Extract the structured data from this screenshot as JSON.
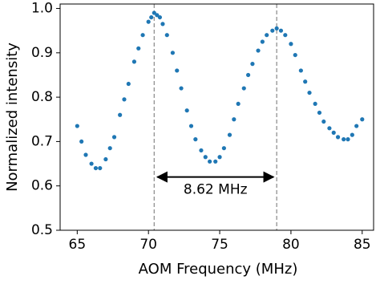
{
  "chart_data": {
    "type": "scatter",
    "xlabel": "AOM Frequency (MHz)",
    "ylabel": "Normalized intensity",
    "xlim": [
      63.8,
      85.8
    ],
    "ylim": [
      0.5,
      1.01
    ],
    "xticks": [
      65,
      70,
      75,
      80,
      85
    ],
    "yticks": [
      0.5,
      0.6,
      0.7,
      0.8,
      0.9,
      {
        "value": 1,
        "label": "1.0"
      }
    ],
    "color": "#1f77b4",
    "vlines": [
      70.4,
      79
    ],
    "annotation": "8.62 MHz",
    "x": [
      65,
      65.3,
      65.6,
      66,
      66.3,
      66.6,
      67,
      67.3,
      67.6,
      68,
      68.3,
      68.6,
      69,
      69.3,
      69.6,
      70,
      70.2,
      70.4,
      70.6,
      70.8,
      71,
      71.3,
      71.7,
      72,
      72.3,
      72.7,
      73,
      73.3,
      73.7,
      74,
      74.3,
      74.7,
      75,
      75.3,
      75.7,
      76,
      76.3,
      76.7,
      77,
      77.3,
      77.7,
      78,
      78.3,
      78.7,
      79,
      79.3,
      79.6,
      80,
      80.3,
      80.7,
      81,
      81.3,
      81.7,
      82,
      82.3,
      82.7,
      83,
      83.3,
      83.7,
      84,
      84.3,
      84.6,
      85
    ],
    "y": [
      0.735,
      0.7,
      0.67,
      0.65,
      0.64,
      0.64,
      0.66,
      0.685,
      0.71,
      0.76,
      0.795,
      0.83,
      0.88,
      0.91,
      0.94,
      0.97,
      0.98,
      0.99,
      0.985,
      0.98,
      0.965,
      0.94,
      0.9,
      0.86,
      0.82,
      0.77,
      0.735,
      0.705,
      0.68,
      0.665,
      0.655,
      0.655,
      0.665,
      0.685,
      0.715,
      0.75,
      0.785,
      0.82,
      0.85,
      0.875,
      0.905,
      0.925,
      0.94,
      0.95,
      0.955,
      0.95,
      0.94,
      0.92,
      0.895,
      0.86,
      0.835,
      0.81,
      0.785,
      0.765,
      0.745,
      0.73,
      0.72,
      0.71,
      0.705,
      0.705,
      0.715,
      0.735,
      0.75
    ]
  }
}
